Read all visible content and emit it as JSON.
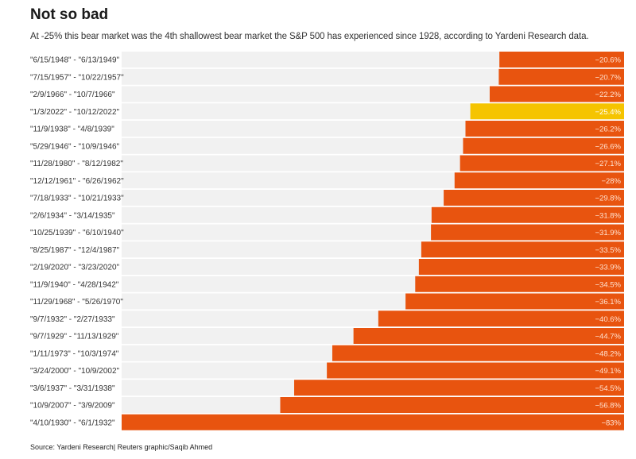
{
  "title": "Not so bad",
  "subtitle": "At -25% this bear market was the 4th shallowest bear market the S&P 500 has experienced since 1928, according to Yardeni Research data.",
  "source": "Source: Yardeni Research| Reuters graphic/Saqib Ahmed",
  "colors": {
    "bar": "#e8540f",
    "highlight": "#f5c400",
    "track": "#f1f1f1"
  },
  "chart_data": {
    "type": "bar",
    "orientation": "horizontal",
    "categories": [
      "\"6/15/1948\" - \"6/13/1949\"",
      "\"7/15/1957\" - \"10/22/1957\"",
      "\"2/9/1966\" - \"10/7/1966\"",
      "\"1/3/2022\" - \"10/12/2022\"",
      "\"11/9/1938\" - \"4/8/1939\"",
      "\"5/29/1946\" - \"10/9/1946\"",
      "\"11/28/1980\" - \"8/12/1982\"",
      "\"12/12/1961\" - \"6/26/1962\"",
      "\"7/18/1933\" - \"10/21/1933\"",
      "\"2/6/1934\" - \"3/14/1935\"",
      "\"10/25/1939\" - \"6/10/1940\"",
      "\"8/25/1987\" - \"12/4/1987\"",
      "\"2/19/2020\" - \"3/23/2020\"",
      "\"11/9/1940\" - \"4/28/1942\"",
      "\"11/29/1968\" - \"5/26/1970\"",
      "\"9/7/1932\" - \"2/27/1933\"",
      "\"9/7/1929\" - \"11/13/1929\"",
      "\"1/11/1973\" - \"10/3/1974\"",
      "\"3/24/2000\" - \"10/9/2002\"",
      "\"3/6/1937\" - \"3/31/1938\"",
      "\"10/9/2007\" - \"3/9/2009\"",
      "\"4/10/1930\" - \"6/1/1932\""
    ],
    "values": [
      -20.6,
      -20.7,
      -22.2,
      -25.4,
      -26.2,
      -26.6,
      -27.1,
      -28,
      -29.8,
      -31.8,
      -31.9,
      -33.5,
      -33.9,
      -34.5,
      -36.1,
      -40.6,
      -44.7,
      -48.2,
      -49.1,
      -54.5,
      -56.8,
      -83
    ],
    "value_labels": [
      "−20.6%",
      "−20.7%",
      "−22.2%",
      "−25.4%",
      "−26.2%",
      "−26.6%",
      "−27.1%",
      "−28%",
      "−29.8%",
      "−31.8%",
      "−31.9%",
      "−33.5%",
      "−33.9%",
      "−34.5%",
      "−36.1%",
      "−40.6%",
      "−44.7%",
      "−48.2%",
      "−49.1%",
      "−54.5%",
      "−56.8%",
      "−83%"
    ],
    "highlight_index": 3,
    "xlim": [
      -83,
      0
    ]
  }
}
